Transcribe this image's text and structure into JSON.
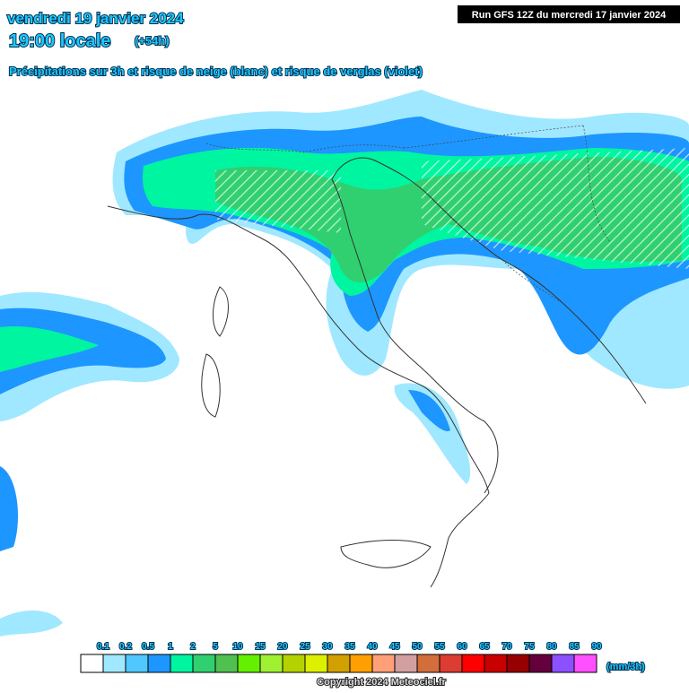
{
  "header": {
    "date": "vendredi 19 janvier 2024",
    "time": "19:00 locale",
    "lead": "(+54h)",
    "subtitle": "Précipitations sur 3h et risque de neige (blanc) et risque de verglas (violet)",
    "run": "Run GFS 12Z du mercredi 17 janvier 2024"
  },
  "legend": {
    "unit": "(mm/3h)",
    "items": [
      {
        "label": "0.1",
        "color": "#ffffff"
      },
      {
        "label": "0.2",
        "color": "#a0e8ff"
      },
      {
        "label": "0.5",
        "color": "#50c8ff"
      },
      {
        "label": "1",
        "color": "#1e96ff"
      },
      {
        "label": "2",
        "color": "#00f5a0"
      },
      {
        "label": "5",
        "color": "#30d070"
      },
      {
        "label": "10",
        "color": "#50c050"
      },
      {
        "label": "15",
        "color": "#64f000"
      },
      {
        "label": "20",
        "color": "#a0f032"
      },
      {
        "label": "25",
        "color": "#b4d200"
      },
      {
        "label": "30",
        "color": "#dcf000"
      },
      {
        "label": "35",
        "color": "#d2a000"
      },
      {
        "label": "40",
        "color": "#ffa000"
      },
      {
        "label": "45",
        "color": "#ffa078"
      },
      {
        "label": "50",
        "color": "#d2a0a0"
      },
      {
        "label": "55",
        "color": "#d26e3c"
      },
      {
        "label": "60",
        "color": "#dc3c32"
      },
      {
        "label": "65",
        "color": "#ff0000"
      },
      {
        "label": "70",
        "color": "#c80000"
      },
      {
        "label": "75",
        "color": "#960000"
      },
      {
        "label": "80",
        "color": "#64003c"
      },
      {
        "label": "85",
        "color": "#8c50ff"
      },
      {
        "label": "90",
        "color": "#ff50ff"
      }
    ]
  },
  "footer": {
    "copyright": "Copyright 2024 Meteociel.fr"
  }
}
